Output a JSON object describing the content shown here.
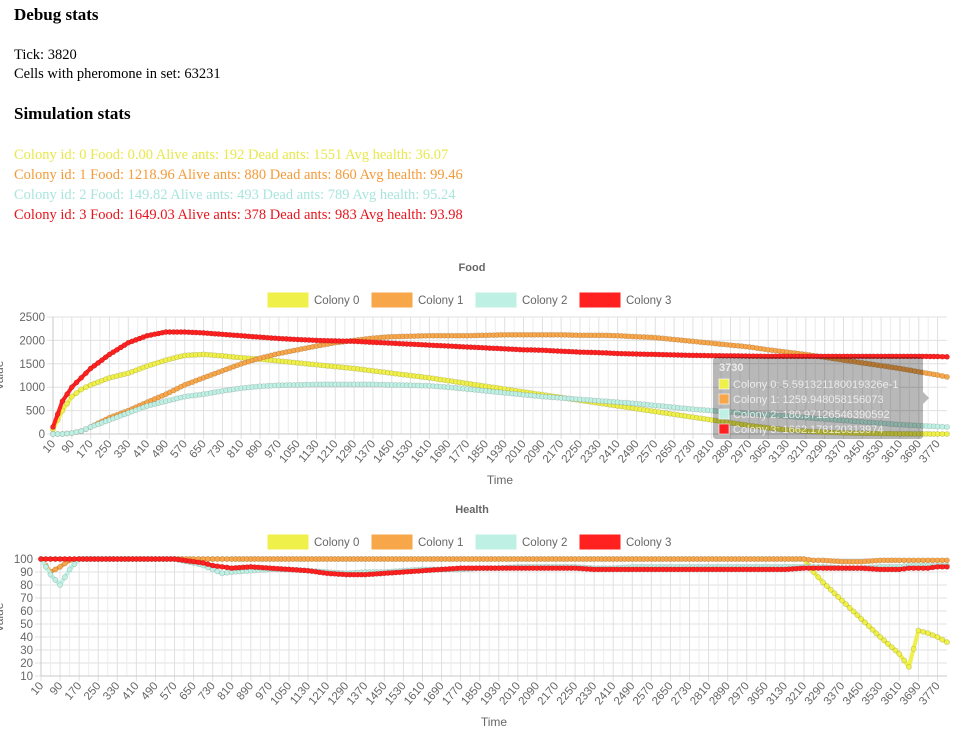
{
  "debug": {
    "heading": "Debug stats",
    "tick": "Tick: 3820",
    "cells": "Cells with pheromone in set: 63231"
  },
  "simulation": {
    "heading": "Simulation stats",
    "colonies": [
      {
        "text": "Colony id: 0 Food: 0.00 Alive ants: 192 Dead ants: 1551 Avg health: 36.07",
        "color": "#e8e84a"
      },
      {
        "text": "Colony id: 1 Food: 1218.96 Alive ants: 880 Dead ants: 860 Avg health: 99.46",
        "color": "#f59a38"
      },
      {
        "text": "Colony id: 2 Food: 149.82 Alive ants: 493 Dead ants: 789 Avg health: 95.24",
        "color": "#a8e6dc"
      },
      {
        "text": "Colony id: 3 Food: 1649.03 Alive ants: 378 Dead ants: 983 Avg health: 93.98",
        "color": "#e8141c"
      }
    ]
  },
  "chart_data": [
    {
      "type": "line",
      "title": "Food",
      "xlabel": "Time",
      "ylabel": "Value",
      "ylim": [
        0,
        2500
      ],
      "yticks": [
        0,
        500,
        1000,
        1500,
        2000,
        2500
      ],
      "x_tick_labels": [
        "10",
        "90",
        "170",
        "250",
        "330",
        "410",
        "490",
        "570",
        "650",
        "730",
        "810",
        "890",
        "970",
        "1050",
        "1130",
        "1210",
        "1290",
        "1370",
        "1450",
        "1530",
        "1610",
        "1690",
        "1770",
        "1850",
        "1930",
        "2010",
        "2090",
        "2170",
        "2250",
        "2330",
        "2410",
        "2490",
        "2570",
        "2650",
        "2730",
        "2810",
        "2890",
        "2970",
        "3050",
        "3130",
        "3210",
        "3290",
        "3370",
        "3450",
        "3530",
        "3610",
        "3690",
        "3770"
      ],
      "legend_position": "top",
      "grid": true,
      "x": [
        10,
        50,
        90,
        130,
        170,
        250,
        330,
        410,
        490,
        570,
        650,
        730,
        810,
        890,
        970,
        1050,
        1130,
        1210,
        1290,
        1370,
        1450,
        1530,
        1610,
        1690,
        1770,
        1850,
        1930,
        2010,
        2090,
        2170,
        2250,
        2330,
        2410,
        2490,
        2570,
        2650,
        2730,
        2810,
        2890,
        2970,
        3050,
        3130,
        3210,
        3290,
        3370,
        3450,
        3530,
        3610,
        3690,
        3770,
        3810
      ],
      "series": [
        {
          "name": "Colony 0",
          "color": "#f0f04a",
          "values": [
            100,
            500,
            800,
            950,
            1050,
            1200,
            1300,
            1450,
            1580,
            1680,
            1700,
            1670,
            1630,
            1600,
            1560,
            1520,
            1480,
            1440,
            1400,
            1350,
            1300,
            1250,
            1200,
            1140,
            1080,
            1020,
            960,
            900,
            840,
            780,
            720,
            660,
            600,
            540,
            480,
            420,
            360,
            300,
            240,
            180,
            130,
            90,
            60,
            40,
            25,
            15,
            10,
            5,
            2,
            0,
            0
          ]
        },
        {
          "name": "Colony 1",
          "color": "#f7a64a",
          "values": [
            0,
            0,
            20,
            60,
            150,
            350,
            500,
            680,
            850,
            1050,
            1200,
            1350,
            1500,
            1620,
            1720,
            1800,
            1880,
            1950,
            2000,
            2050,
            2080,
            2090,
            2100,
            2100,
            2100,
            2110,
            2120,
            2120,
            2120,
            2120,
            2110,
            2110,
            2100,
            2080,
            2060,
            2020,
            1980,
            1940,
            1900,
            1860,
            1800,
            1750,
            1700,
            1640,
            1580,
            1520,
            1460,
            1400,
            1330,
            1260,
            1220
          ]
        },
        {
          "name": "Colony 2",
          "color": "#bff0e4",
          "values": [
            0,
            0,
            20,
            60,
            150,
            300,
            450,
            600,
            700,
            800,
            850,
            920,
            980,
            1020,
            1040,
            1050,
            1060,
            1060,
            1060,
            1060,
            1050,
            1040,
            1030,
            1000,
            960,
            920,
            880,
            840,
            800,
            770,
            740,
            710,
            680,
            650,
            610,
            570,
            530,
            500,
            470,
            440,
            410,
            380,
            350,
            320,
            290,
            260,
            230,
            200,
            180,
            160,
            150
          ]
        },
        {
          "name": "Colony 3",
          "color": "#ff2020",
          "values": [
            150,
            700,
            1000,
            1200,
            1400,
            1700,
            1950,
            2100,
            2180,
            2180,
            2160,
            2130,
            2100,
            2070,
            2040,
            2020,
            2000,
            1990,
            1980,
            1960,
            1940,
            1920,
            1900,
            1880,
            1860,
            1840,
            1820,
            1800,
            1790,
            1770,
            1750,
            1740,
            1720,
            1710,
            1700,
            1690,
            1680,
            1675,
            1670,
            1665,
            1660,
            1660,
            1660,
            1660,
            1660,
            1660,
            1660,
            1660,
            1660,
            1655,
            1650
          ]
        }
      ]
    },
    {
      "type": "line",
      "title": "Health",
      "xlabel": "Time",
      "ylabel": "Value",
      "ylim": [
        10,
        100
      ],
      "yticks": [
        10,
        20,
        30,
        40,
        50,
        60,
        70,
        80,
        90,
        100
      ],
      "x_tick_labels": [
        "10",
        "90",
        "170",
        "250",
        "330",
        "410",
        "490",
        "570",
        "650",
        "730",
        "810",
        "890",
        "970",
        "1050",
        "1130",
        "1210",
        "1290",
        "1370",
        "1450",
        "1530",
        "1610",
        "1690",
        "1770",
        "1850",
        "1930",
        "2010",
        "2090",
        "2170",
        "2250",
        "2330",
        "2410",
        "2490",
        "2570",
        "2650",
        "2730",
        "2810",
        "2890",
        "2970",
        "3050",
        "3130",
        "3210",
        "3290",
        "3370",
        "3450",
        "3530",
        "3610",
        "3690",
        "3770"
      ],
      "legend_position": "top",
      "grid": true,
      "x": [
        10,
        50,
        90,
        130,
        170,
        250,
        330,
        410,
        490,
        570,
        650,
        690,
        730,
        770,
        810,
        890,
        970,
        1050,
        1130,
        1210,
        1290,
        1370,
        1450,
        1530,
        1610,
        1690,
        1770,
        1850,
        1930,
        2010,
        2090,
        2170,
        2250,
        2330,
        2410,
        2490,
        2570,
        2650,
        2730,
        2810,
        2890,
        2970,
        3050,
        3130,
        3210,
        3250,
        3290,
        3370,
        3450,
        3530,
        3610,
        3650,
        3690,
        3730,
        3770,
        3810
      ],
      "series": [
        {
          "name": "Colony 0",
          "color": "#f0f04a",
          "values": [
            100,
            100,
            100,
            100,
            100,
            100,
            100,
            100,
            100,
            100,
            100,
            100,
            100,
            100,
            100,
            100,
            100,
            100,
            100,
            100,
            100,
            100,
            100,
            100,
            100,
            100,
            100,
            100,
            100,
            100,
            100,
            100,
            100,
            100,
            100,
            100,
            100,
            100,
            100,
            100,
            100,
            100,
            100,
            100,
            100,
            90,
            82,
            68,
            54,
            40,
            27,
            17,
            45,
            43,
            40,
            36
          ]
        },
        {
          "name": "Colony 1",
          "color": "#f7a64a",
          "values": [
            100,
            90,
            94,
            99,
            100,
            100,
            100,
            100,
            100,
            100,
            100,
            100,
            100,
            100,
            100,
            100,
            100,
            100,
            100,
            100,
            100,
            100,
            100,
            100,
            100,
            100,
            100,
            100,
            100,
            100,
            100,
            100,
            100,
            100,
            100,
            100,
            100,
            100,
            100,
            100,
            100,
            100,
            100,
            100,
            100,
            99,
            99,
            98,
            98,
            99,
            99,
            99,
            99,
            99,
            99,
            99
          ]
        },
        {
          "name": "Colony 2",
          "color": "#bff0e4",
          "values": [
            100,
            88,
            80,
            92,
            100,
            100,
            100,
            100,
            100,
            100,
            97,
            95,
            92,
            89,
            90,
            91,
            92,
            92,
            91,
            90,
            89,
            90,
            90,
            91,
            92,
            92,
            92,
            93,
            93,
            94,
            94,
            94,
            94,
            93,
            93,
            94,
            94,
            94,
            94,
            94,
            94,
            94,
            94,
            94,
            94,
            94,
            94,
            93,
            93,
            94,
            94,
            95,
            95,
            95,
            95,
            95
          ]
        },
        {
          "name": "Colony 3",
          "color": "#ff2020",
          "values": [
            100,
            100,
            100,
            100,
            100,
            100,
            100,
            100,
            100,
            100,
            98,
            97,
            95,
            94,
            93,
            94,
            93,
            92,
            91,
            89,
            88,
            88,
            89,
            90,
            91,
            92,
            93,
            93,
            93,
            93,
            93,
            93,
            93,
            92,
            92,
            92,
            92,
            92,
            92,
            92,
            92,
            92,
            92,
            92,
            93,
            93,
            93,
            93,
            93,
            92,
            92,
            93,
            93,
            93,
            94,
            94
          ]
        }
      ]
    }
  ],
  "tooltip": {
    "title": "3730",
    "lines": [
      "Colony 0: 5.591321180019326e-1",
      "Colony 1: 1259.948058156073",
      "Colony 2: 180.97126546390592",
      "Colony 3: 1662.178120313974"
    ]
  }
}
